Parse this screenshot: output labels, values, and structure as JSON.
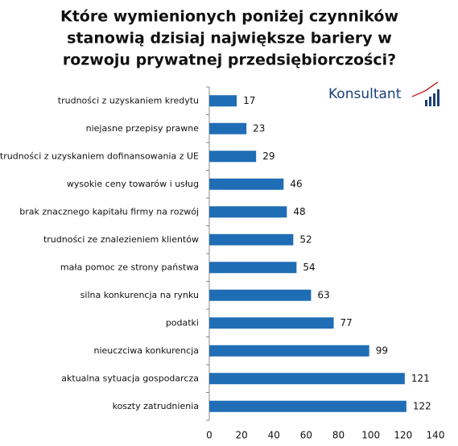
{
  "chart_data": {
    "type": "bar",
    "orientation": "horizontal",
    "title": [
      "Które wymienionych poniżej czynników",
      "stanowią dzisiaj największe bariery w",
      "rozwoju prywatnej przedsiębiorczości?"
    ],
    "logo": "Konsultant",
    "categories": [
      "trudności z uzyskaniem kredytu",
      "niejasne przepisy prawne",
      "trudności z uzyskaniem dofinansowania z UE",
      "wysokie ceny towarów i usług",
      "brak znacznego kapitału firmy na rozwój",
      "trudności ze znalezieniem klientów",
      "mała pomoc ze strony państwa",
      "silna konkurencja na rynku",
      "podatki",
      "nieuczciwa konkurencja",
      "aktualna sytuacja gospodarcza",
      "koszty zatrudnienia"
    ],
    "values": [
      17,
      23,
      29,
      46,
      48,
      52,
      54,
      63,
      77,
      99,
      121,
      122
    ],
    "color": "#1f6db5",
    "xlim": [
      0,
      140
    ],
    "xticks": [
      0,
      20,
      40,
      60,
      80,
      100,
      120,
      140
    ],
    "grid": false
  }
}
